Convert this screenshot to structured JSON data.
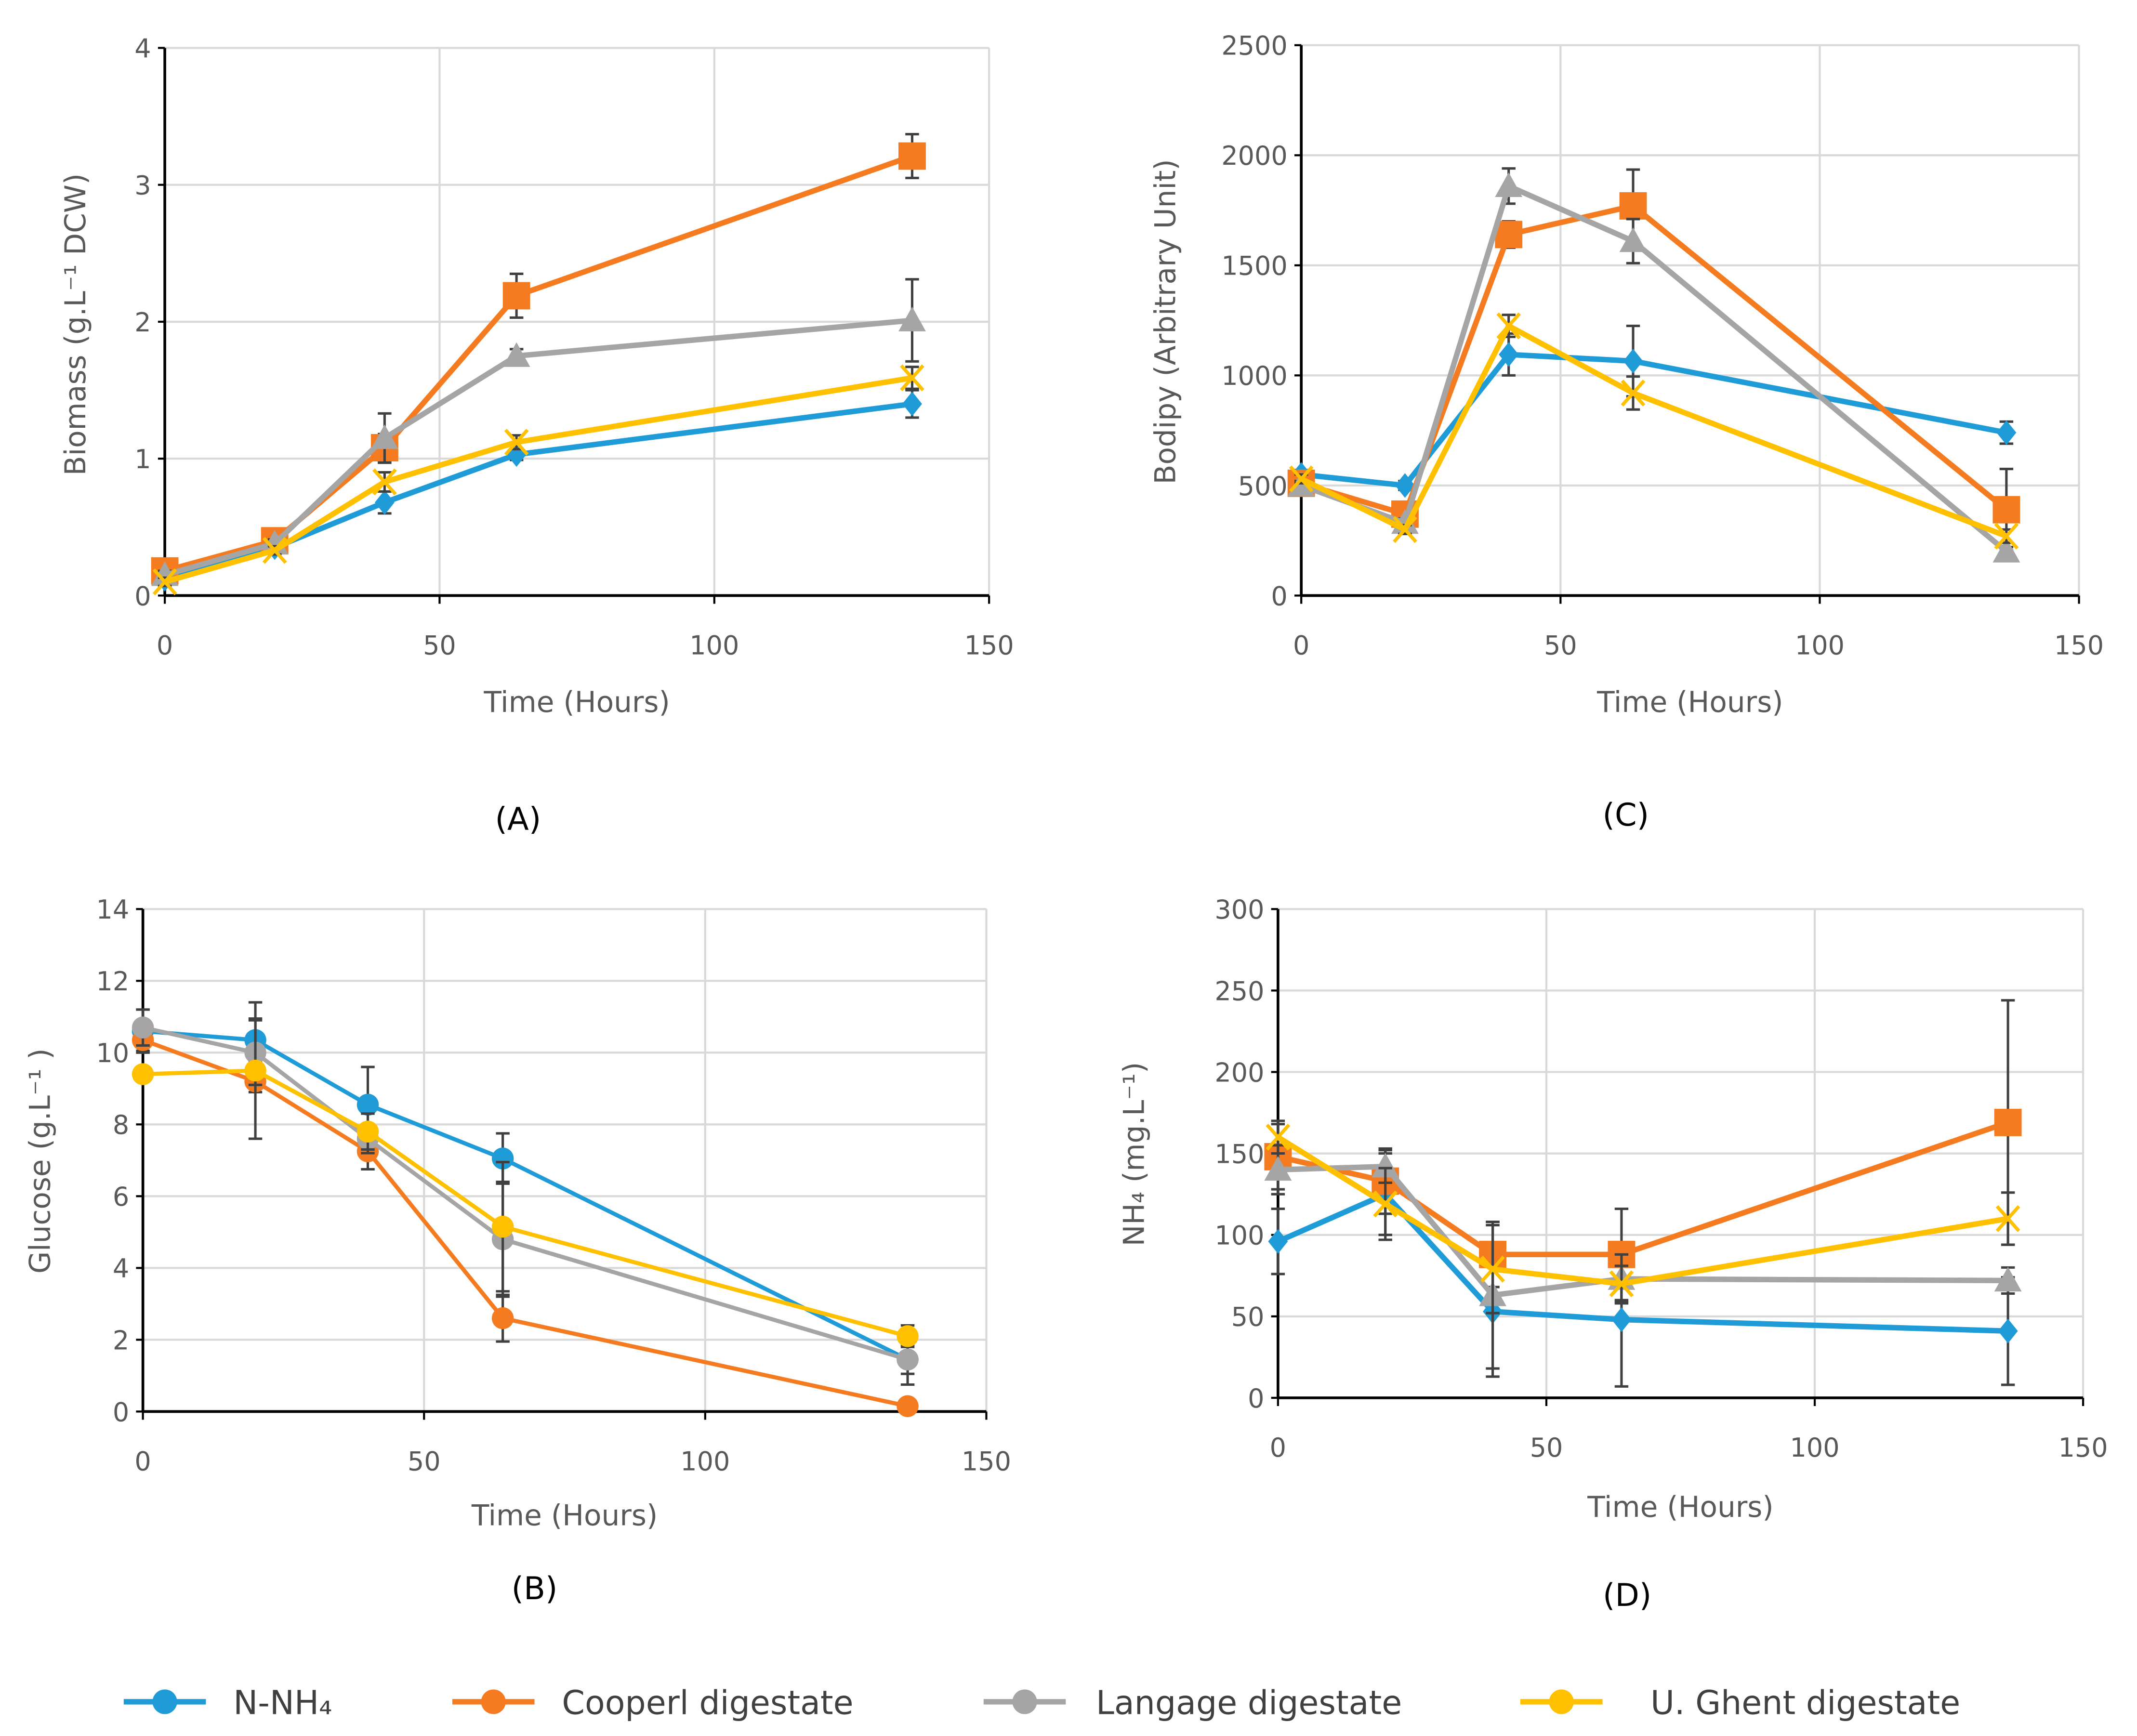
{
  "chart_data": [
    {
      "id": "A",
      "type": "line",
      "panel_label": "(A)",
      "xlabel": "Time (Hours)",
      "ylabel": "Biomass (g.L⁻¹ DCW)",
      "xlim": [
        0,
        150
      ],
      "ylim": [
        0,
        4
      ],
      "xticks": [
        0,
        50,
        100,
        150
      ],
      "yticks": [
        0,
        1,
        2,
        3,
        4
      ],
      "grid": true,
      "marker_style": "mixed",
      "x": [
        0,
        20,
        40,
        64,
        136
      ],
      "series": [
        {
          "name": "N-NH₄",
          "values": [
            0.12,
            0.35,
            0.68,
            1.03,
            1.4
          ],
          "errors": [
            0.05,
            0.03,
            0.08,
            0.04,
            0.1
          ]
        },
        {
          "name": "Cooperl digestate",
          "values": [
            0.18,
            0.4,
            1.08,
            2.19,
            3.21
          ],
          "errors": [
            0.03,
            0.03,
            0.1,
            0.16,
            0.16
          ]
        },
        {
          "name": "Langage digestate",
          "values": [
            0.15,
            0.38,
            1.15,
            1.75,
            2.01
          ],
          "errors": [
            0.03,
            0.03,
            0.18,
            0.05,
            0.3
          ]
        },
        {
          "name": "U. Ghent digestate",
          "values": [
            0.1,
            0.33,
            0.83,
            1.12,
            1.59
          ],
          "errors": [
            0.03,
            0.03,
            0.07,
            0.05,
            0.08
          ]
        }
      ]
    },
    {
      "id": "C",
      "type": "line",
      "panel_label": "(C)",
      "xlabel": "Time (Hours)",
      "ylabel": "Bodipy (Arbitrary Unit)",
      "xlim": [
        0,
        150
      ],
      "ylim": [
        0,
        2500
      ],
      "xticks": [
        0,
        50,
        100,
        150
      ],
      "yticks": [
        0,
        500,
        1000,
        1500,
        2000,
        2500
      ],
      "grid": true,
      "marker_style": "mixed",
      "x": [
        0,
        20,
        40,
        64,
        136
      ],
      "series": [
        {
          "name": "N-NH₄",
          "values": [
            550,
            500,
            1095,
            1065,
            740
          ],
          "errors": [
            20,
            20,
            95,
            160,
            50
          ]
        },
        {
          "name": "Cooperl digestate",
          "values": [
            510,
            370,
            1640,
            1770,
            390
          ],
          "errors": [
            20,
            20,
            60,
            165,
            185
          ]
        },
        {
          "name": "Langage digestate",
          "values": [
            500,
            330,
            1860,
            1610,
            200
          ],
          "errors": [
            20,
            20,
            80,
            100,
            20
          ]
        },
        {
          "name": "U. Ghent digestate",
          "values": [
            530,
            300,
            1225,
            920,
            270
          ],
          "errors": [
            20,
            20,
            50,
            75,
            30
          ]
        }
      ]
    },
    {
      "id": "B",
      "type": "line",
      "panel_label": "(B)",
      "xlabel": "Time (Hours)",
      "ylabel": "Glucose (g.L⁻¹ )",
      "xlim": [
        0,
        150
      ],
      "ylim": [
        0,
        14
      ],
      "xticks": [
        0,
        50,
        100,
        150
      ],
      "yticks": [
        0,
        2,
        4,
        6,
        8,
        10,
        12,
        14
      ],
      "grid": true,
      "marker_style": "circle",
      "x": [
        0,
        20,
        40,
        64,
        136
      ],
      "series": [
        {
          "name": "N-NH₄",
          "values": [
            10.6,
            10.35,
            8.55,
            7.05,
            1.45
          ],
          "errors": [
            0.6,
            0.6,
            1.05,
            0.7,
            0.4
          ]
        },
        {
          "name": "Cooperl digestate",
          "values": [
            10.35,
            9.2,
            7.25,
            2.6,
            0.15
          ],
          "errors": [
            0.3,
            0.3,
            0.5,
            0.65,
            0.1
          ]
        },
        {
          "name": "Langage digestate",
          "values": [
            10.7,
            10.0,
            7.6,
            4.8,
            1.45
          ],
          "errors": [
            0.5,
            0.9,
            0.4,
            1.6,
            0.7
          ]
        },
        {
          "name": "U. Ghent digestate",
          "values": [
            9.4,
            9.5,
            7.8,
            5.15,
            2.1
          ],
          "errors": [
            0.2,
            1.9,
            0.5,
            1.8,
            0.3
          ]
        }
      ]
    },
    {
      "id": "D",
      "type": "line",
      "panel_label": "(D)",
      "xlabel": "Time (Hours)",
      "ylabel": "NH₄ (mg.L⁻¹)",
      "xlim": [
        0,
        150
      ],
      "ylim": [
        0,
        300
      ],
      "xticks": [
        0,
        50,
        100,
        150
      ],
      "yticks": [
        0,
        50,
        100,
        150,
        200,
        250,
        300
      ],
      "grid": true,
      "marker_style": "mixed",
      "x": [
        0,
        20,
        40,
        64,
        136
      ],
      "series": [
        {
          "name": "N-NH₄",
          "values": [
            96,
            125,
            53,
            48,
            41
          ],
          "errors": [
            20,
            25,
            40,
            41,
            33
          ]
        },
        {
          "name": "Cooperl digestate",
          "values": [
            148,
            133,
            88,
            88,
            169
          ],
          "errors": [
            20,
            20,
            20,
            28,
            75
          ]
        },
        {
          "name": "Langage digestate",
          "values": [
            140,
            142,
            63,
            73,
            72
          ],
          "errors": [
            15,
            10,
            45,
            15,
            8
          ]
        },
        {
          "name": "U. Ghent digestate",
          "values": [
            160,
            119,
            79,
            70,
            110
          ],
          "errors": [
            10,
            22,
            27,
            11,
            16
          ]
        }
      ]
    }
  ],
  "legend": {
    "placement": "bottom",
    "items": [
      "N-NH₄",
      "Cooperl digestate",
      "Langage digestate",
      "U. Ghent digestate"
    ]
  },
  "colors": [
    "#1f9bd7",
    "#f47b20",
    "#a5a5a5",
    "#ffc000"
  ],
  "markers": [
    "diamond",
    "square",
    "triangle",
    "x"
  ]
}
